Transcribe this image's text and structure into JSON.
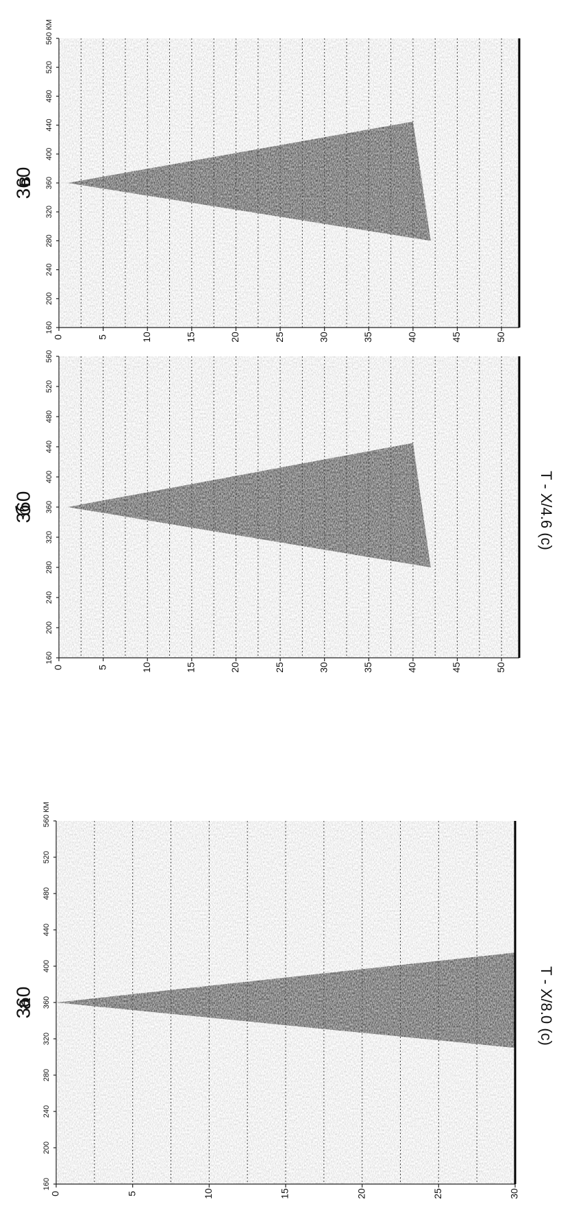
{
  "chart_data": [
    {
      "type": "heatmap",
      "panel_label": "в",
      "center_label": "360",
      "xlabel": "",
      "ylabel": "",
      "x_unit_label": "КМ",
      "x_ticks": [
        160,
        200,
        240,
        280,
        320,
        360,
        400,
        440,
        480,
        520,
        560
      ],
      "y_ticks": [
        0,
        5,
        10,
        15,
        20,
        25,
        30,
        35,
        40,
        45,
        50
      ],
      "xlim": [
        160,
        560
      ],
      "ylim": [
        0,
        52
      ],
      "grid": true,
      "wedge": {
        "apex_x": 360,
        "apex_t": 1,
        "left_end": [
          280,
          42
        ],
        "right_end": [
          445,
          40
        ]
      }
    },
    {
      "type": "heatmap",
      "panel_label": "б",
      "center_label": "360",
      "xlabel": "",
      "ylabel": "T - X/4.6 (c)",
      "x_ticks": [
        160,
        200,
        240,
        280,
        320,
        360,
        400,
        440,
        480,
        520,
        560
      ],
      "y_ticks": [
        0,
        5,
        10,
        15,
        20,
        25,
        30,
        35,
        40,
        45,
        50
      ],
      "xlim": [
        160,
        560
      ],
      "ylim": [
        0,
        52
      ],
      "grid": true,
      "wedge": {
        "apex_x": 360,
        "apex_t": 1,
        "left_end": [
          280,
          42
        ],
        "right_end": [
          445,
          40
        ]
      }
    },
    {
      "type": "heatmap",
      "panel_label": "а",
      "center_label": "360",
      "xlabel": "",
      "ylabel": "T - X/8.0 (c)",
      "x_unit_label": "КМ",
      "x_ticks": [
        160,
        200,
        240,
        280,
        320,
        360,
        400,
        440,
        480,
        520,
        560
      ],
      "y_ticks": [
        0,
        5,
        10,
        15,
        20,
        25,
        30
      ],
      "xlim": [
        160,
        560
      ],
      "ylim": [
        0,
        30
      ],
      "grid": true,
      "wedge": {
        "apex_x": 360,
        "apex_t": 0,
        "left_end": [
          310,
          30
        ],
        "right_end": [
          415,
          30
        ]
      }
    }
  ]
}
